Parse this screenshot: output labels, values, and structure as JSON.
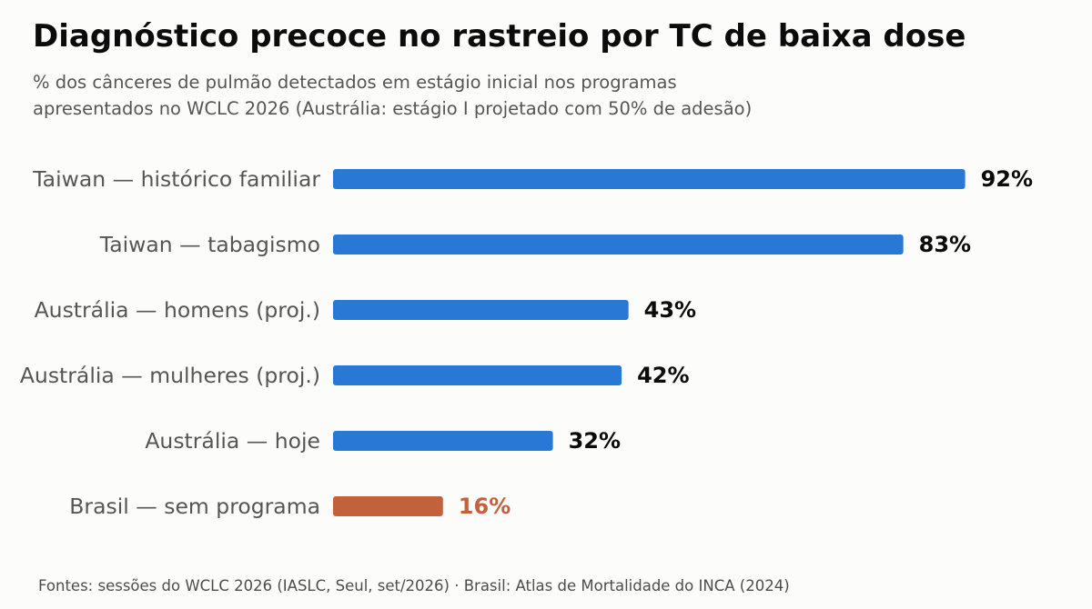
{
  "title": "Diagnóstico precoce no rastreio por TC de baixa dose",
  "subtitle_lines": [
    "% dos cânceres de pulmão detectados em estágio inicial nos programas",
    "apresentados no WCLC 2026 (Austrália: estágio I projetado com 50% de adesão)"
  ],
  "source": "Fontes: sessões do WCLC 2026 (IASLC, Seul, set/2026) · Brasil: Atlas de Mortalidade do INCA (2024)",
  "colors": {
    "bar": "#2a78d6",
    "highlight": "#c2623d",
    "value_text": "#0b0b0b"
  },
  "chart_data": {
    "type": "bar",
    "orientation": "horizontal",
    "categories": [
      "Taiwan — histórico familiar",
      "Taiwan — tabagismo",
      "Austrália — homens (proj.)",
      "Austrália — mulheres (proj.)",
      "Austrália — hoje",
      "Brasil — sem programa"
    ],
    "values": [
      92,
      83,
      43,
      42,
      32,
      16
    ],
    "value_labels": [
      "92%",
      "83%",
      "43%",
      "42%",
      "32%",
      "16%"
    ],
    "highlight": [
      "Brasil — sem programa"
    ],
    "xlim": [
      0,
      100
    ],
    "grid": false,
    "legend": "none"
  }
}
